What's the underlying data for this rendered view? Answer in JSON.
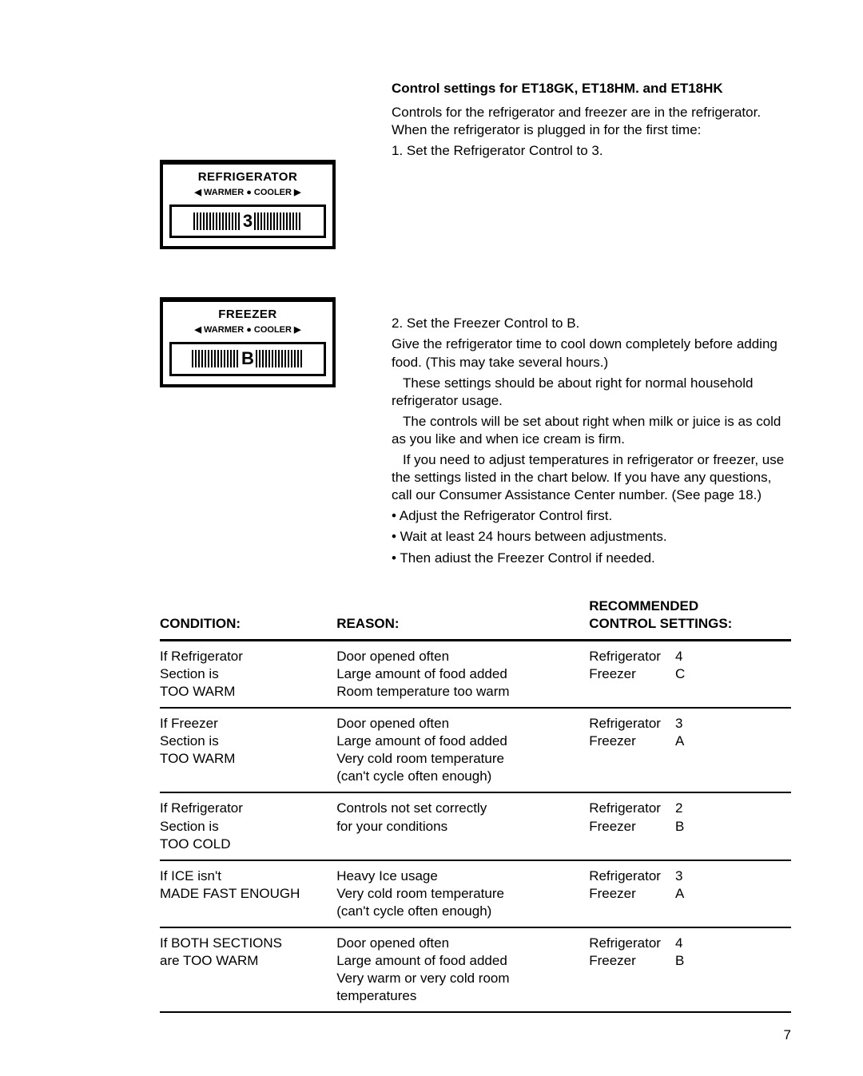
{
  "heading": "Control settings for ET18GK, ET18HM. and ET18HK",
  "intro": "Controls for the refrigerator and freezer are in the refrigerator. When the refrigerator is plugged in for the first time:",
  "step1": "1. Set the Refrigerator Control to 3.",
  "step2": "2. Set the Freezer Control to B.",
  "para1": "Give the refrigerator time to cool down completely before adding food. (This may take several hours.)",
  "para2": "These settings should be about right for normal household refrigerator usage.",
  "para3": "The controls will be set about right when milk or juice is as cold as you like and when ice cream is firm.",
  "para4": "If you need to adjust temperatures in refrigerator or freezer, use the settings listed in the chart below. If you have any questions, call our Consumer Assistance Center number. (See page 18.)",
  "bul1": "• Adjust the Refrigerator Control first.",
  "bul2": "• Wait at least 24 hours between adjustments.",
  "bul3": "• Then adiust the Freezer Control if needed.",
  "diagram_refrigerator": {
    "title": "REFRIGERATOR",
    "sub": "◀ WARMER ● COOLER ▶",
    "dial": "3"
  },
  "diagram_freezer": {
    "title": "FREEZER",
    "sub": "◀ WARMER ● COOLER ▶",
    "dial": "B"
  },
  "table_headers": {
    "cond": "CONDITION:",
    "reason": "REASON:",
    "settings_top": "RECOMMENDED",
    "settings_bottom": "CONTROL SETTINGS:"
  },
  "rows": [
    {
      "condition_l1": "If Refrigerator",
      "condition_l2": "Section is",
      "condition_l3": "TOO WARM",
      "reason_l1": "Door opened often",
      "reason_l2": "Large amount of food added",
      "reason_l3": "Room temperature too warm",
      "reason_l4": "",
      "set_r": "4",
      "set_f": "C"
    },
    {
      "condition_l1": "If Freezer",
      "condition_l2": "Section is",
      "condition_l3": "TOO WARM",
      "reason_l1": "Door opened often",
      "reason_l2": "Large amount of food added",
      "reason_l3": "Very cold room temperature",
      "reason_l4": "(can't cycle often enough)",
      "set_r": "3",
      "set_f": "A"
    },
    {
      "condition_l1": "If Refrigerator",
      "condition_l2": "Section is",
      "condition_l3": "TOO COLD",
      "reason_l1": "Controls not set correctly",
      "reason_l2": "for your conditions",
      "reason_l3": "",
      "reason_l4": "",
      "set_r": "2",
      "set_f": "B"
    },
    {
      "condition_l1": "If ICE isn't",
      "condition_l2": "MADE FAST ENOUGH",
      "condition_l3": "",
      "reason_l1": "Heavy Ice usage",
      "reason_l2": "Very cold room temperature",
      "reason_l3": "(can't cycle often enough)",
      "reason_l4": "",
      "set_r": "3",
      "set_f": "A"
    },
    {
      "condition_l1": "If BOTH SECTIONS",
      "condition_l2": "are TOO WARM",
      "condition_l3": "",
      "reason_l1": "Door opened often",
      "reason_l2": "Large amount of food added",
      "reason_l3": "Very warm or very cold room",
      "reason_l4": "temperatures",
      "set_r": "4",
      "set_f": "B"
    }
  ],
  "setting_label_r": "Refrigerator",
  "setting_label_f": "Freezer",
  "page_number": "7"
}
